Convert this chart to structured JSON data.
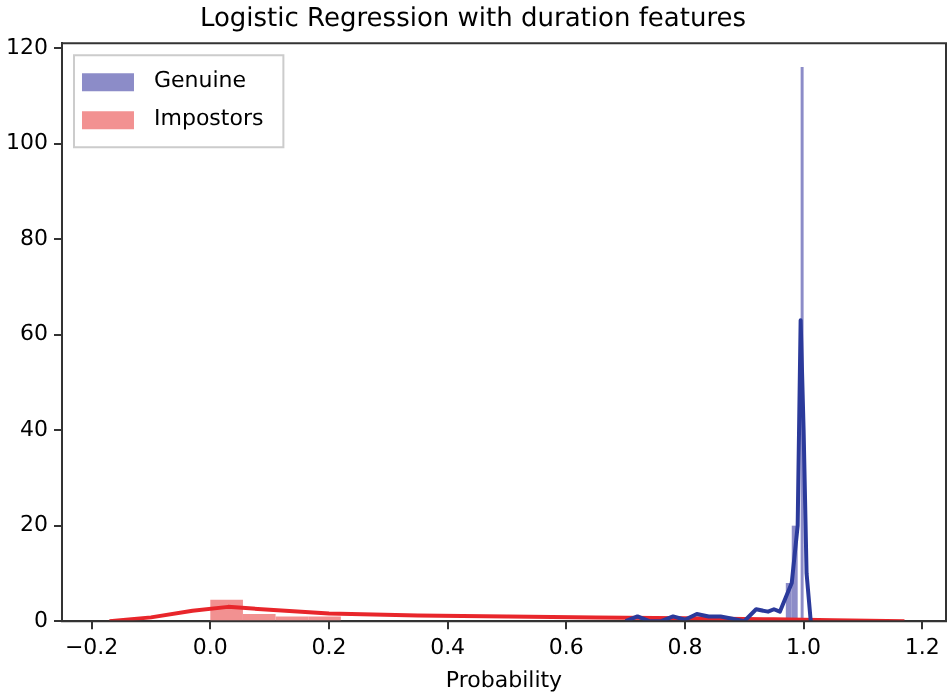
{
  "chart_data": {
    "type": "histogram",
    "title": "Logistic Regression with duration features",
    "xlabel": "Probability",
    "xlim": [
      -0.25,
      1.24
    ],
    "xticks": [
      {
        "value": -0.2,
        "label": "−0.2"
      },
      {
        "value": 0,
        "label": "0.0"
      },
      {
        "value": 0.2,
        "label": "0.2"
      },
      {
        "value": 0.4,
        "label": "0.4"
      },
      {
        "value": 0.6,
        "label": "0.6"
      },
      {
        "value": 0.8,
        "label": "0.8"
      },
      {
        "value": 1,
        "label": "1.0"
      },
      {
        "value": 1.2,
        "label": "1.2"
      }
    ],
    "ylim": [
      0,
      121
    ],
    "yticks": [
      0,
      20,
      40,
      60,
      80,
      100,
      120
    ],
    "grid": false,
    "legend": "top left",
    "series": [
      {
        "name": "Genuine",
        "color": "#8c8cc8",
        "bins": [
          0.97,
          0.98,
          0.99,
          0.995,
          1.0
        ],
        "values": [
          8,
          20,
          null,
          116
        ]
      },
      {
        "name": "Impostors",
        "color": "#f29191",
        "bins": [
          0,
          0.055,
          0.11,
          0.165,
          0.22
        ],
        "values": [
          4.5,
          1.5,
          1,
          1
        ]
      },
      {
        "type": "line",
        "color": "#2b3a9b",
        "x": [
          0.7,
          0.72,
          0.74,
          0.76,
          0.78,
          0.8,
          0.82,
          0.84,
          0.86,
          0.88,
          0.9,
          0.92,
          0.94,
          0.95,
          0.96,
          0.97,
          0.98,
          0.99,
          0.995,
          1.0,
          1.005,
          1.012
        ],
        "values": [
          0,
          1,
          0,
          0,
          1,
          0.3,
          1.5,
          1,
          1,
          0.5,
          0,
          2.5,
          2,
          2.5,
          2,
          5,
          8,
          20,
          63,
          40,
          10,
          0
        ]
      },
      {
        "type": "line",
        "color": "#e8262b",
        "x": [
          -0.17,
          -0.1,
          -0.03,
          0.03,
          0.1,
          0.2,
          0.35,
          0.5,
          0.65,
          0.8,
          0.95,
          1.05,
          1.17
        ],
        "values": [
          0,
          0.8,
          2.2,
          3,
          2.4,
          1.6,
          1.2,
          1,
          0.8,
          0.6,
          0.4,
          0.2,
          0
        ]
      }
    ]
  }
}
